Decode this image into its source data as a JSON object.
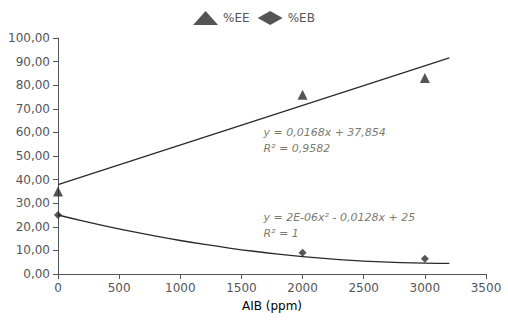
{
  "chart_data": {
    "type": "scatter",
    "xlabel": "AIB (ppm)",
    "xlim": [
      0,
      3500
    ],
    "ylim": [
      0.0,
      100.0
    ],
    "xticks": [
      0,
      500,
      1000,
      1500,
      2000,
      2500,
      3000,
      3500
    ],
    "yticks": [
      {
        "value": 0.0,
        "label": "0,00"
      },
      {
        "value": 10.0,
        "label": "10,00"
      },
      {
        "value": 20.0,
        "label": "20,00"
      },
      {
        "value": 30.0,
        "label": "30,00"
      },
      {
        "value": 40.0,
        "label": "40,00"
      },
      {
        "value": 50.0,
        "label": "50,00"
      },
      {
        "value": 60.0,
        "label": "60,00"
      },
      {
        "value": 70.0,
        "label": "70,00"
      },
      {
        "value": 80.0,
        "label": "80,00"
      },
      {
        "value": 90.0,
        "label": "90,00"
      },
      {
        "value": 100.0,
        "label": "100,00"
      }
    ],
    "grid": false,
    "legend": "top",
    "series": [
      {
        "type": "line",
        "color": "#2a2a2a",
        "line_style": "solid",
        "x": [
          0,
          3200
        ],
        "values": [
          37.854,
          91.614
        ]
      },
      {
        "type": "line",
        "color": "#2a2a2a",
        "line_style": "solid",
        "x": [
          0,
          200,
          400,
          600,
          800,
          1000,
          1200,
          1400,
          1600,
          1800,
          2000,
          2200,
          2400,
          2600,
          2800,
          3000,
          3200
        ],
        "values": [
          25,
          22.52,
          20.2,
          18.04,
          16.04,
          14.2,
          12.52,
          11,
          9.64,
          8.44,
          7.4,
          6.52,
          5.8,
          5.24,
          4.84,
          4.6,
          4.52
        ]
      },
      {
        "type": "scatter",
        "name": "%EE",
        "color": "#2a2a2a",
        "marker": "triangle",
        "x": [
          0,
          2000,
          3000
        ],
        "values": [
          35.0,
          76.0,
          83.0
        ]
      },
      {
        "type": "scatter",
        "name": "%EB",
        "color": "#2a2a2a",
        "marker": "diamond",
        "x": [
          0,
          2000,
          3000
        ],
        "values": [
          25.0,
          9.0,
          6.5
        ]
      }
    ],
    "annotations": [
      {
        "text": "y = 0,0168x + 37,854",
        "x": 1680,
        "y": 60,
        "color": "#555545"
      },
      {
        "text": "R² = 0,9582",
        "x": 1680,
        "y": 53,
        "color": "#555545"
      },
      {
        "text": "y = 2E-06x² - 0,0128x + 25",
        "x": 1680,
        "y": 24,
        "color": "#555545"
      },
      {
        "text": "R² = 1",
        "x": 1680,
        "y": 17,
        "color": "#555545"
      }
    ]
  }
}
